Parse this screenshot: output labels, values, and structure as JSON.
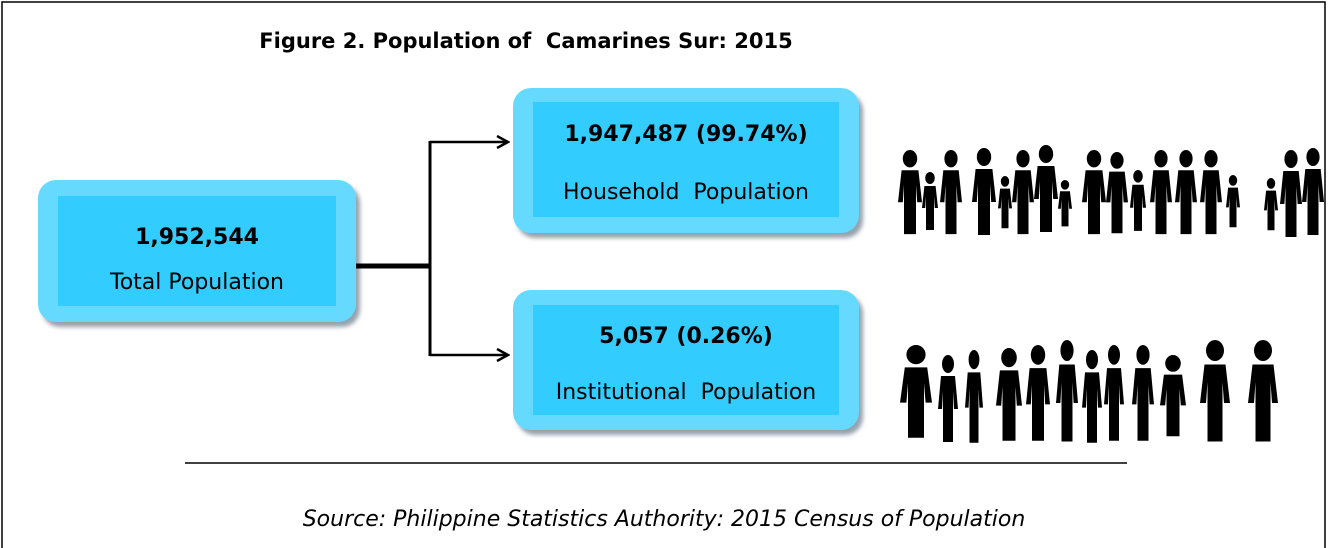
{
  "title": "Figure 2. Population of  Camarines Sur: 2015",
  "nodes": [
    {
      "value": "1,952,544",
      "label": "Total Population"
    },
    {
      "value": "1,947,487 (99.74%)",
      "label": "Household  Population"
    },
    {
      "value": "5,057 (0.26%)",
      "label": "Institutional  Population"
    }
  ],
  "source": "Source: Philippine Statistics Authority: 2015 Census of Population"
}
